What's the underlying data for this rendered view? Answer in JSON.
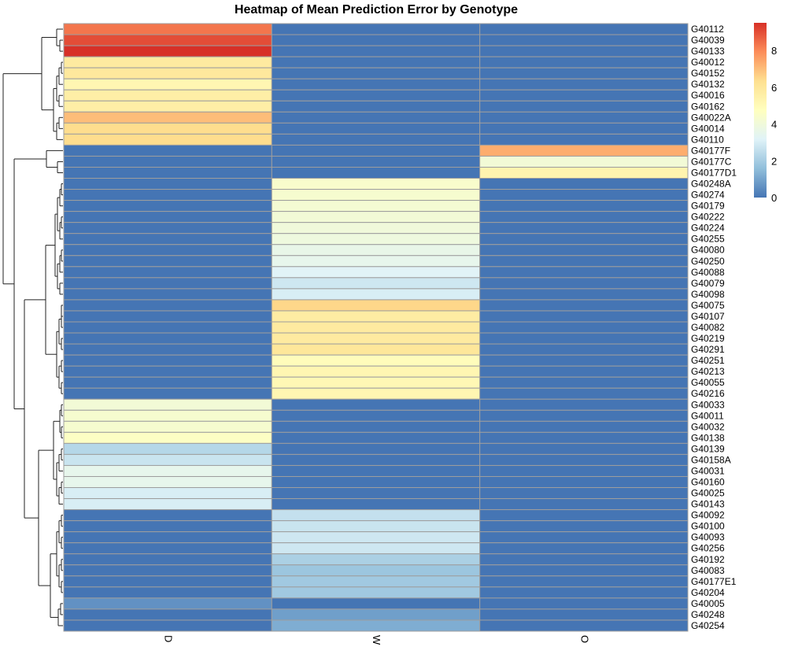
{
  "chart_data": {
    "type": "heatmap",
    "title": "Heatmap of Mean Prediction Error by Genotype",
    "columns": [
      "D",
      "W",
      "O"
    ],
    "rows": [
      "G40112",
      "G40039",
      "G40133",
      "G40012",
      "G40152",
      "G40132",
      "G40016",
      "G40162",
      "G40022A",
      "G40014",
      "G40110",
      "G40177F",
      "G40177C",
      "G40177D1",
      "G40248A",
      "G40274",
      "G40179",
      "G40222",
      "G40224",
      "G40255",
      "G40080",
      "G40250",
      "G40088",
      "G40079",
      "G40098",
      "G40075",
      "G40107",
      "G40082",
      "G40219",
      "G40291",
      "G40251",
      "G40213",
      "G40055",
      "G40216",
      "G40033",
      "G40011",
      "G40032",
      "G40138",
      "G40139",
      "G40158A",
      "G40031",
      "G40160",
      "G40025",
      "G40143",
      "G40092",
      "G40100",
      "G40093",
      "G40256",
      "G40192",
      "G40083",
      "G40177E1",
      "G40204",
      "G40005",
      "G40248",
      "G40254"
    ],
    "values": [
      [
        8.3,
        0,
        0
      ],
      [
        9.0,
        0,
        0
      ],
      [
        9.5,
        0,
        0
      ],
      [
        5.8,
        0,
        0
      ],
      [
        5.9,
        0,
        0
      ],
      [
        5.2,
        0,
        0
      ],
      [
        5.6,
        0,
        0
      ],
      [
        5.6,
        0,
        0
      ],
      [
        7.0,
        0,
        0
      ],
      [
        6.4,
        0,
        0
      ],
      [
        6.4,
        0,
        0
      ],
      [
        0,
        0,
        7.3
      ],
      [
        0,
        0,
        4.1
      ],
      [
        0,
        0,
        5.3
      ],
      [
        0,
        4.4,
        0
      ],
      [
        0,
        4.3,
        0
      ],
      [
        0,
        4.2,
        0
      ],
      [
        0,
        4.1,
        0
      ],
      [
        0,
        4.0,
        0
      ],
      [
        0,
        3.9,
        0
      ],
      [
        0,
        3.6,
        0
      ],
      [
        0,
        3.5,
        0
      ],
      [
        0,
        3.2,
        0
      ],
      [
        0,
        2.8,
        0
      ],
      [
        0,
        3.0,
        0
      ],
      [
        0,
        6.5,
        0
      ],
      [
        0,
        5.7,
        0
      ],
      [
        0,
        5.8,
        0
      ],
      [
        0,
        5.8,
        0
      ],
      [
        0,
        6.0,
        0
      ],
      [
        0,
        4.9,
        0
      ],
      [
        0,
        5.2,
        0
      ],
      [
        0,
        5.1,
        0
      ],
      [
        0,
        5.2,
        0
      ],
      [
        4.1,
        0,
        0
      ],
      [
        4.3,
        0,
        0
      ],
      [
        4.3,
        0,
        0
      ],
      [
        4.6,
        0,
        0
      ],
      [
        2.3,
        0,
        0
      ],
      [
        2.7,
        0,
        0
      ],
      [
        3.5,
        0,
        0
      ],
      [
        3.5,
        0,
        0
      ],
      [
        3.0,
        0,
        0
      ],
      [
        3.0,
        0,
        0
      ],
      [
        0,
        2.6,
        0
      ],
      [
        0,
        2.7,
        0
      ],
      [
        0,
        2.8,
        0
      ],
      [
        0,
        2.8,
        0
      ],
      [
        0,
        2.1,
        0
      ],
      [
        0,
        1.8,
        0
      ],
      [
        0,
        1.9,
        0
      ],
      [
        0,
        1.9,
        0
      ],
      [
        0.6,
        0,
        0
      ],
      [
        0,
        0.9,
        0
      ],
      [
        0,
        1.2,
        0
      ]
    ],
    "color_scale": {
      "range": [
        0,
        9.5
      ],
      "colors": [
        "#4575B4",
        "#91BFDB",
        "#E0F3F8",
        "#FFFFBF",
        "#FEE090",
        "#FC8D59",
        "#D73027"
      ],
      "ticks": [
        "0",
        "2",
        "4",
        "6",
        "8"
      ]
    },
    "cell_border_color": "#9E9E9E",
    "row_dendrogram": true,
    "legend_placement": "right"
  }
}
